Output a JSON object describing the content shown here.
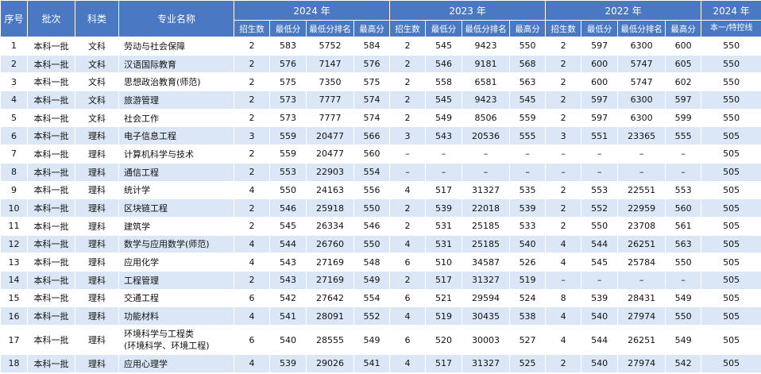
{
  "headers": {
    "seq": "序号",
    "batch": "批次",
    "category": "科类",
    "major": "专业名称",
    "years": [
      "2024 年",
      "2023 年",
      "2022 年"
    ],
    "control_year": "2024 年",
    "control_label": "本一/特控线",
    "sub": [
      "招生数",
      "最低分",
      "最低分排名",
      "最高分"
    ]
  },
  "rows": [
    {
      "no": "1",
      "batch": "本科一批",
      "cat": "文科",
      "major": "劳动与社会保障",
      "y2024": [
        "2",
        "583",
        "5752",
        "584"
      ],
      "y2023": [
        "2",
        "545",
        "9423",
        "550"
      ],
      "y2022": [
        "2",
        "597",
        "6300",
        "600"
      ],
      "line": "550"
    },
    {
      "no": "2",
      "batch": "本科一批",
      "cat": "文科",
      "major": "汉语国际教育",
      "y2024": [
        "2",
        "576",
        "7147",
        "576"
      ],
      "y2023": [
        "2",
        "546",
        "9181",
        "568"
      ],
      "y2022": [
        "2",
        "600",
        "5747",
        "605"
      ],
      "line": "550"
    },
    {
      "no": "3",
      "batch": "本科一批",
      "cat": "文科",
      "major": "思想政治教育(师范)",
      "y2024": [
        "2",
        "575",
        "7350",
        "575"
      ],
      "y2023": [
        "2",
        "558",
        "6581",
        "563"
      ],
      "y2022": [
        "2",
        "600",
        "5747",
        "602"
      ],
      "line": "550"
    },
    {
      "no": "4",
      "batch": "本科一批",
      "cat": "文科",
      "major": "旅游管理",
      "y2024": [
        "2",
        "573",
        "7777",
        "574"
      ],
      "y2023": [
        "2",
        "545",
        "9423",
        "545"
      ],
      "y2022": [
        "2",
        "597",
        "6300",
        "597"
      ],
      "line": "550"
    },
    {
      "no": "5",
      "batch": "本科一批",
      "cat": "文科",
      "major": "社会工作",
      "y2024": [
        "2",
        "573",
        "7777",
        "574"
      ],
      "y2023": [
        "2",
        "549",
        "8506",
        "559"
      ],
      "y2022": [
        "2",
        "597",
        "6300",
        "599"
      ],
      "line": "550"
    },
    {
      "no": "6",
      "batch": "本科一批",
      "cat": "理科",
      "major": "电子信息工程",
      "y2024": [
        "3",
        "559",
        "20477",
        "566"
      ],
      "y2023": [
        "3",
        "543",
        "20536",
        "555"
      ],
      "y2022": [
        "3",
        "551",
        "23365",
        "555"
      ],
      "line": "505"
    },
    {
      "no": "7",
      "batch": "本科一批",
      "cat": "理科",
      "major": "计算机科学与技术",
      "y2024": [
        "2",
        "559",
        "20477",
        "560"
      ],
      "y2023": [
        "–",
        "–",
        "–",
        "–"
      ],
      "y2022": [
        "–",
        "–",
        "–",
        "–"
      ],
      "line": "505"
    },
    {
      "no": "8",
      "batch": "本科一批",
      "cat": "理科",
      "major": "通信工程",
      "y2024": [
        "2",
        "553",
        "22903",
        "554"
      ],
      "y2023": [
        "–",
        "–",
        "–",
        "–"
      ],
      "y2022": [
        "–",
        "–",
        "–",
        "–"
      ],
      "line": "505"
    },
    {
      "no": "9",
      "batch": "本科一批",
      "cat": "理科",
      "major": "统计学",
      "y2024": [
        "4",
        "550",
        "24163",
        "556"
      ],
      "y2023": [
        "4",
        "517",
        "31327",
        "535"
      ],
      "y2022": [
        "2",
        "553",
        "22551",
        "553"
      ],
      "line": "505"
    },
    {
      "no": "10",
      "batch": "本科一批",
      "cat": "理科",
      "major": "区块链工程",
      "y2024": [
        "2",
        "546",
        "25918",
        "550"
      ],
      "y2023": [
        "2",
        "539",
        "22018",
        "539"
      ],
      "y2022": [
        "2",
        "552",
        "22959",
        "560"
      ],
      "line": "505"
    },
    {
      "no": "11",
      "batch": "本科一批",
      "cat": "理科",
      "major": "建筑学",
      "y2024": [
        "2",
        "545",
        "26334",
        "546"
      ],
      "y2023": [
        "2",
        "531",
        "25185",
        "533"
      ],
      "y2022": [
        "2",
        "550",
        "23708",
        "561"
      ],
      "line": "505"
    },
    {
      "no": "12",
      "batch": "本科一批",
      "cat": "理科",
      "major": "数学与应用数学(师范)",
      "y2024": [
        "4",
        "544",
        "26760",
        "550"
      ],
      "y2023": [
        "4",
        "531",
        "25185",
        "540"
      ],
      "y2022": [
        "4",
        "544",
        "26251",
        "563"
      ],
      "line": "505"
    },
    {
      "no": "13",
      "batch": "本科一批",
      "cat": "理科",
      "major": "应用化学",
      "y2024": [
        "4",
        "543",
        "27169",
        "548"
      ],
      "y2023": [
        "6",
        "510",
        "34587",
        "526"
      ],
      "y2022": [
        "4",
        "545",
        "25784",
        "550"
      ],
      "line": "505"
    },
    {
      "no": "14",
      "batch": "本科一批",
      "cat": "理科",
      "major": "工程管理",
      "y2024": [
        "2",
        "543",
        "27169",
        "549"
      ],
      "y2023": [
        "2",
        "517",
        "31327",
        "519"
      ],
      "y2022": [
        "–",
        "–",
        "–",
        "–"
      ],
      "line": "505"
    },
    {
      "no": "15",
      "batch": "本科一批",
      "cat": "理科",
      "major": "交通工程",
      "y2024": [
        "6",
        "542",
        "27642",
        "554"
      ],
      "y2023": [
        "6",
        "521",
        "29594",
        "524"
      ],
      "y2022": [
        "8",
        "539",
        "28431",
        "549"
      ],
      "line": "505"
    },
    {
      "no": "16",
      "batch": "本科一批",
      "cat": "理科",
      "major": "功能材料",
      "y2024": [
        "4",
        "541",
        "28091",
        "552"
      ],
      "y2023": [
        "4",
        "519",
        "30435",
        "538"
      ],
      "y2022": [
        "4",
        "540",
        "27974",
        "550"
      ],
      "line": "505"
    },
    {
      "no": "17",
      "batch": "本科一批",
      "cat": "理科",
      "major": "环境科学与工程类\n(环境科学、环境工程)",
      "y2024": [
        "6",
        "540",
        "28555",
        "549"
      ],
      "y2023": [
        "6",
        "520",
        "30003",
        "527"
      ],
      "y2022": [
        "4",
        "544",
        "26251",
        "549"
      ],
      "line": "505"
    },
    {
      "no": "18",
      "batch": "本科一批",
      "cat": "理科",
      "major": "应用心理学",
      "y2024": [
        "4",
        "539",
        "29026",
        "541"
      ],
      "y2023": [
        "4",
        "517",
        "31327",
        "525"
      ],
      "y2022": [
        "2",
        "540",
        "27974",
        "542"
      ],
      "line": "505"
    }
  ]
}
